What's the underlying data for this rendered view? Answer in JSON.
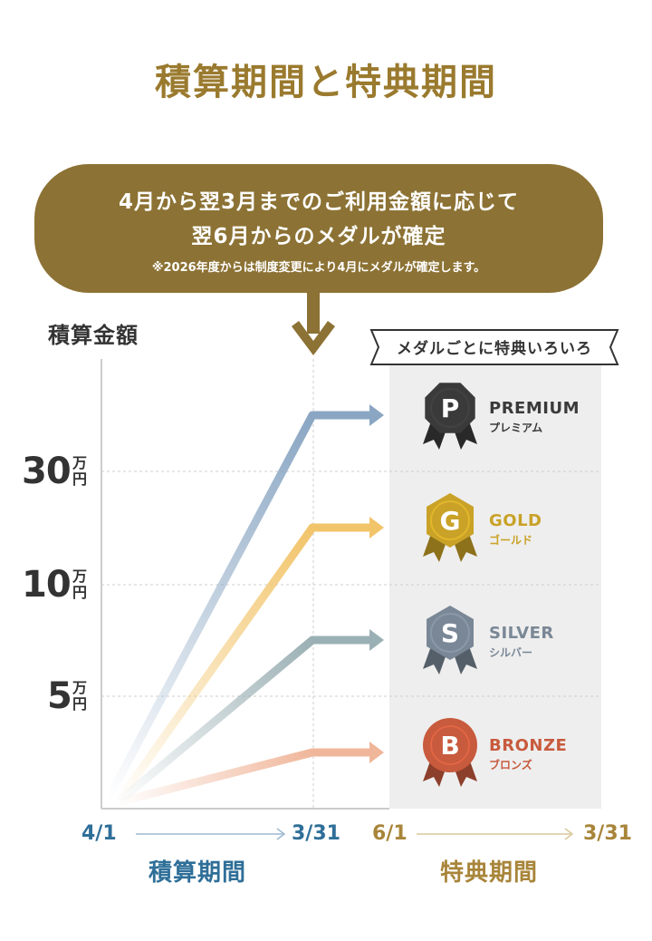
{
  "title": "積算期間と特典期間",
  "bubble": {
    "line1": "4月から翌3月までのご利用金額に応じて",
    "line2": "翌6月からのメダルが確定",
    "note": "※2026年度からは制度変更により4月にメダルが確定します。"
  },
  "y_axis_label": "積算金額",
  "y_ticks": [
    {
      "num": "30",
      "unit_top": "万",
      "unit_bottom": "円"
    },
    {
      "num": "10",
      "unit_top": "万",
      "unit_bottom": "円"
    },
    {
      "num": "5",
      "unit_top": "万",
      "unit_bottom": "円"
    }
  ],
  "banner": "メダルごとに特典いろいろ",
  "medals": [
    {
      "letter": "P",
      "en": "PREMIUM",
      "ja": "プレミアム",
      "color": "#3a3a3a",
      "label_color": "#3a3a3a",
      "line_color": "#8aa6c3"
    },
    {
      "letter": "G",
      "en": "GOLD",
      "ja": "ゴールド",
      "color": "#c9a227",
      "label_color": "#c9a227",
      "line_color": "#f2c46a"
    },
    {
      "letter": "S",
      "en": "SILVER",
      "ja": "シルバー",
      "color": "#7a8796",
      "label_color": "#7a8796",
      "line_color": "#9bb0b4"
    },
    {
      "letter": "B",
      "en": "BRONZE",
      "ja": "ブロンズ",
      "color": "#c85a3d",
      "label_color": "#c85a3d",
      "line_color": "#f0b69a"
    }
  ],
  "periods": {
    "accumulation": {
      "start": "4/1",
      "end": "3/31",
      "name": "積算期間",
      "color": "#2f6f98"
    },
    "benefit": {
      "start": "6/1",
      "end": "3/31",
      "name": "特典期間",
      "color": "#a8853a"
    }
  }
}
